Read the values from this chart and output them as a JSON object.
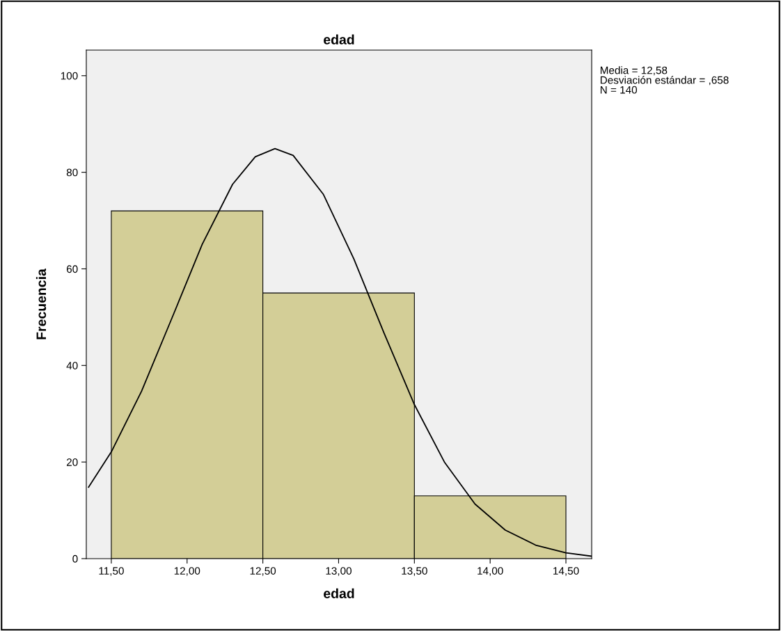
{
  "chart_data": {
    "type": "histogram",
    "title": "edad",
    "xlabel": "edad",
    "ylabel": "Frecuencia",
    "bins": [
      11.5,
      12.5,
      13.5,
      14.5
    ],
    "values": [
      72,
      55,
      13
    ],
    "color": "#d3ce97",
    "series": [
      {
        "type": "line",
        "color": "#000000",
        "x": [
          11.35,
          11.5,
          11.7,
          11.9,
          12.1,
          12.3,
          12.45,
          12.58,
          12.7,
          12.9,
          13.1,
          13.3,
          13.5,
          13.7,
          13.9,
          14.1,
          14.3,
          14.5,
          14.67
        ],
        "values": [
          14.8,
          22.1,
          34.7,
          49.8,
          65.1,
          77.5,
          83.2,
          84.9,
          83.5,
          75.4,
          62.1,
          46.7,
          31.9,
          19.9,
          11.3,
          5.9,
          2.8,
          1.2,
          0.5
        ]
      }
    ],
    "xlim": [
      11.335,
      14.67
    ],
    "ylim": [
      0,
      105.3
    ],
    "xticks": [
      {
        "value": 11.5,
        "label": "11,50"
      },
      {
        "value": 12.0,
        "label": "12,00"
      },
      {
        "value": 12.5,
        "label": "12,50"
      },
      {
        "value": 13.0,
        "label": "13,00"
      },
      {
        "value": 13.5,
        "label": "13,50"
      },
      {
        "value": 14.0,
        "label": "14,00"
      },
      {
        "value": 14.5,
        "label": "14,50"
      }
    ],
    "yticks": [
      0,
      20,
      40,
      60,
      80,
      100
    ],
    "grid": false,
    "legend": false,
    "annotations": [
      "Media = 12,58",
      "Desviación estándar = ,658",
      "N = 140"
    ]
  }
}
